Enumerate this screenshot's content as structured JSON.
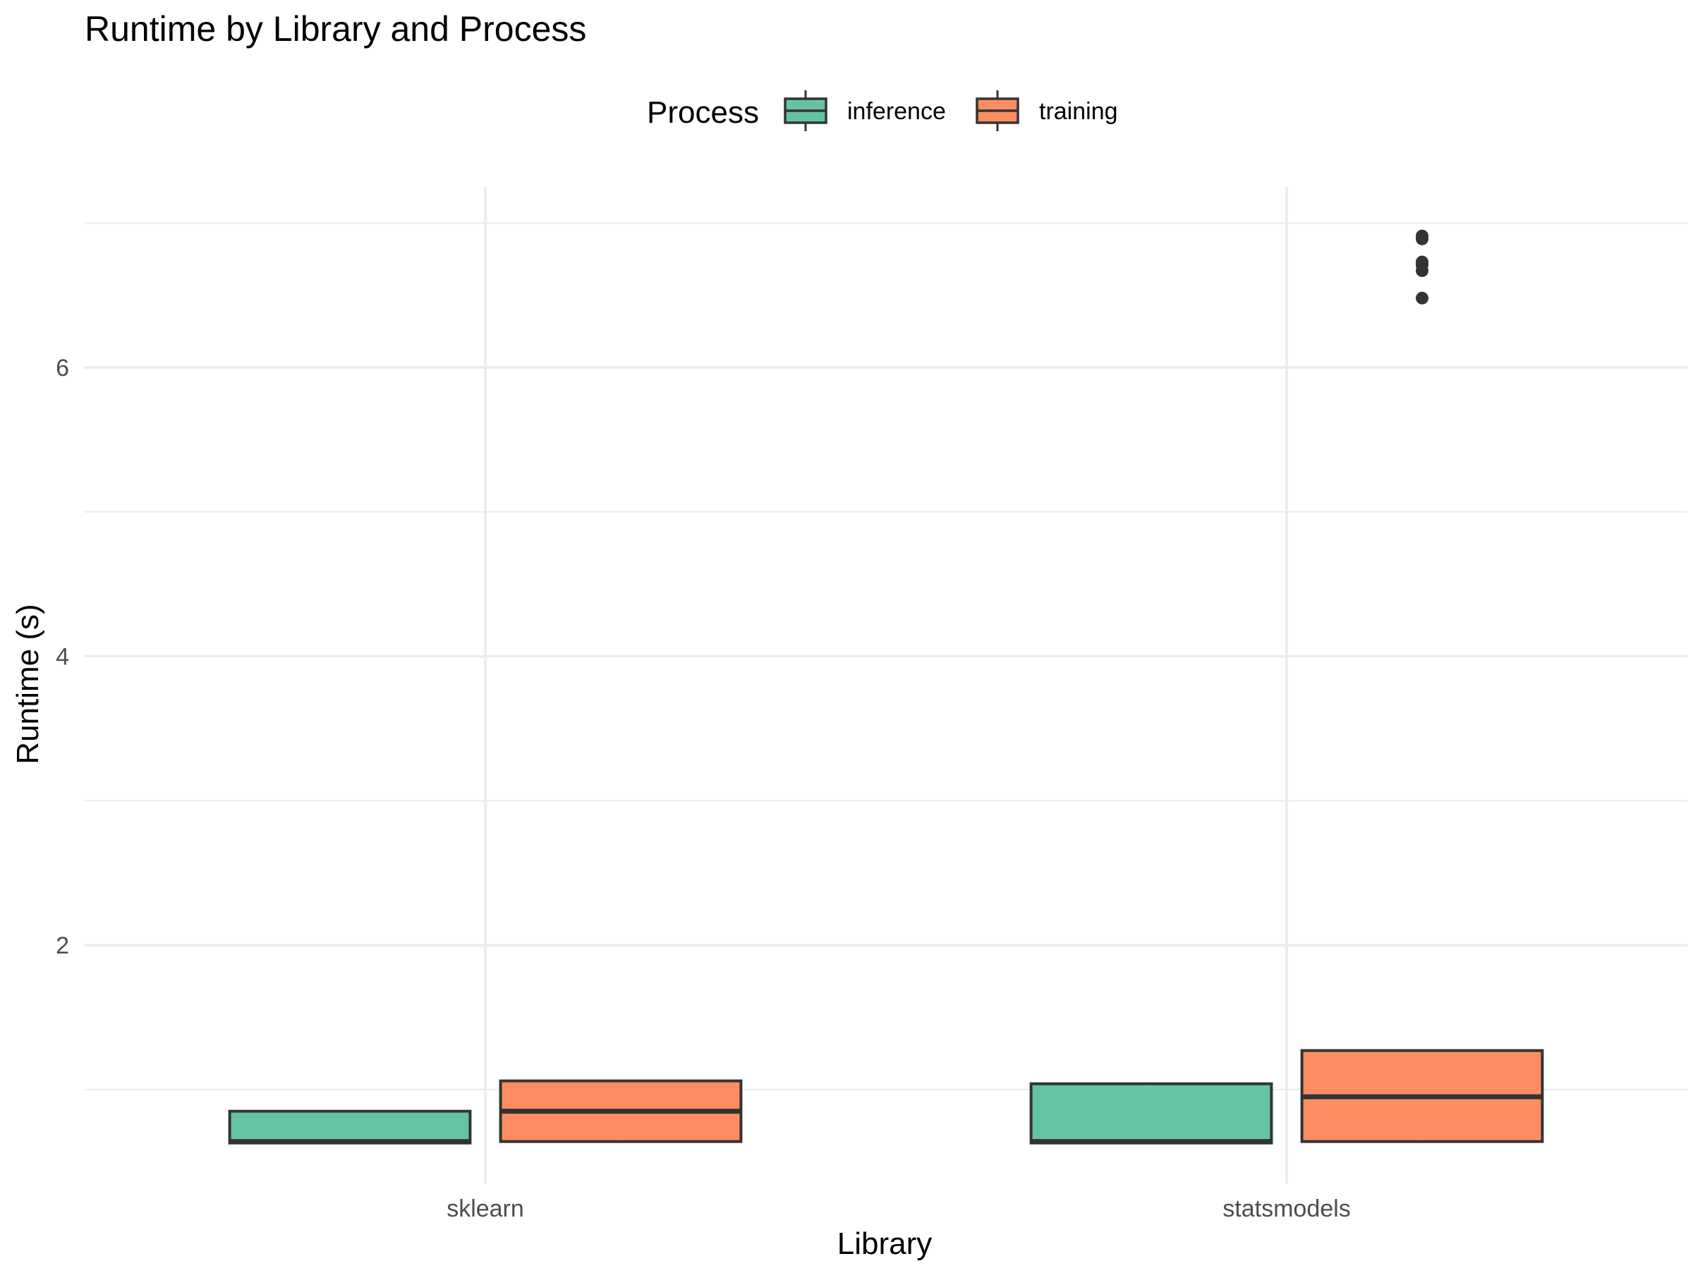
{
  "chart_data": {
    "type": "boxplot",
    "title": "Runtime by Library and Process",
    "xlabel": "Library",
    "ylabel": "Runtime (s)",
    "ylim": [
      0.35,
      7.25
    ],
    "yticks": [
      2,
      4,
      6
    ],
    "grid": true,
    "legend": {
      "title": "Process",
      "position": "top",
      "entries": [
        "inference",
        "training"
      ]
    },
    "categories": [
      "sklearn",
      "statsmodels"
    ],
    "series": [
      {
        "name": "inference",
        "color": "#66c2a5",
        "boxes": [
          {
            "category": "sklearn",
            "min": 0.63,
            "q1": 0.63,
            "median": 0.64,
            "q3": 0.85,
            "max": 0.85,
            "outliers": []
          },
          {
            "category": "statsmodels",
            "min": 0.63,
            "q1": 0.63,
            "median": 0.64,
            "q3": 1.04,
            "max": 1.05,
            "outliers": []
          }
        ]
      },
      {
        "name": "training",
        "color": "#fc8d62",
        "boxes": [
          {
            "category": "sklearn",
            "min": 0.63,
            "q1": 0.64,
            "median": 0.85,
            "q3": 1.06,
            "max": 1.06,
            "outliers": []
          },
          {
            "category": "statsmodels",
            "min": 0.63,
            "q1": 0.64,
            "median": 0.95,
            "q3": 1.27,
            "max": 1.27,
            "outliers": [
              6.48,
              6.67,
              6.71,
              6.73,
              6.89,
              6.91
            ]
          }
        ]
      }
    ]
  }
}
